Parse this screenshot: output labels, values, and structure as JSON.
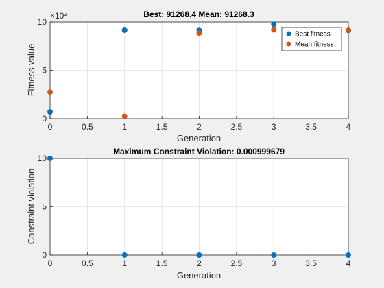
{
  "window": {
    "background": "#f0f0f0"
  },
  "colors": {
    "axes_bg": "#ffffff",
    "grid": "#dfdfdf",
    "axis": "#262626",
    "best": "#0072BD",
    "mean": "#D95319"
  },
  "chart_data": [
    {
      "type": "scatter",
      "title": "Best: 91268.4 Mean: 91268.3",
      "xlabel": "Generation",
      "ylabel": "Fitness value",
      "exponent_label": "×10⁴",
      "xlim": [
        0,
        4
      ],
      "ylim": [
        0,
        100000
      ],
      "grid": true,
      "legend_position": "top-right",
      "x_ticks": [
        0,
        0.5,
        1,
        1.5,
        2,
        2.5,
        3,
        3.5,
        4
      ],
      "x_tick_labels": [
        "0",
        "0.5",
        "1",
        "1.5",
        "2",
        "2.5",
        "3",
        "3.5",
        "4"
      ],
      "y_ticks": [
        0,
        50000,
        100000
      ],
      "y_tick_labels": [
        "0",
        "5",
        "10"
      ],
      "series": [
        {
          "name": "Best fitness",
          "color": "#0072BD",
          "x": [
            0,
            1,
            2,
            3,
            4
          ],
          "y": [
            7000,
            91500,
            91300,
            97600,
            91268.4
          ]
        },
        {
          "name": "Mean fitness",
          "color": "#D95319",
          "x": [
            0,
            1,
            2,
            3,
            4
          ],
          "y": [
            27500,
            2500,
            88600,
            91800,
            91268.3
          ]
        }
      ]
    },
    {
      "type": "scatter",
      "title": "Maximum Constraint Violation: 0.000999679",
      "xlabel": "Generation",
      "ylabel": "Constraint violation",
      "xlim": [
        0,
        4
      ],
      "ylim": [
        0,
        10
      ],
      "grid": true,
      "x_ticks": [
        0,
        0.5,
        1,
        1.5,
        2,
        2.5,
        3,
        3.5,
        4
      ],
      "x_tick_labels": [
        "0",
        "0.5",
        "1",
        "1.5",
        "2",
        "2.5",
        "3",
        "3.5",
        "4"
      ],
      "y_ticks": [
        0,
        5,
        10
      ],
      "y_tick_labels": [
        "0",
        "5",
        "10"
      ],
      "series": [
        {
          "color": "#0072BD",
          "x": [
            0,
            1,
            2,
            3,
            4
          ],
          "y": [
            10,
            0.0012,
            0.001,
            0.001,
            0.000999679
          ]
        }
      ]
    }
  ]
}
